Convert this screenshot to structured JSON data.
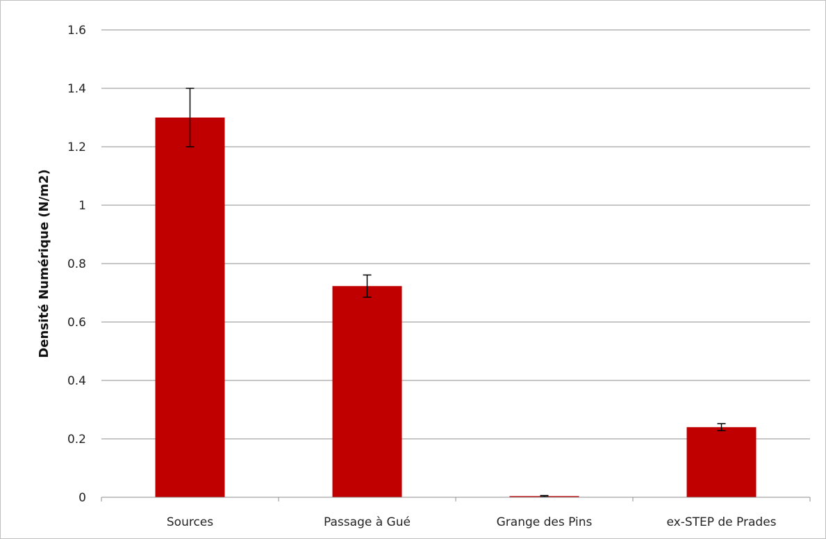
{
  "chart_data": {
    "type": "bar",
    "title": "",
    "xlabel": "",
    "ylabel": "Densité Numérique (N/m2)",
    "categories": [
      "Sources",
      "Passage à Gué",
      "Grange des Pins",
      "ex-STEP de Prades"
    ],
    "values": [
      1.3,
      0.723,
      0.004,
      0.24
    ],
    "errors": [
      0.1,
      0.038,
      0.002,
      0.012
    ],
    "ylim": [
      0,
      1.6
    ],
    "yticks": [
      0,
      0.2,
      0.4,
      0.6,
      0.8,
      1,
      1.2,
      1.4,
      1.6
    ],
    "ytick_labels": [
      "0",
      "0.2",
      "0.4",
      "0.6",
      "0.8",
      "1",
      "1.2",
      "1.4",
      "1.6"
    ],
    "grid": true,
    "legend": "none",
    "colors": {
      "bar": "#c00000",
      "grid": "#8c8c8c",
      "axis": "#8c8c8c",
      "error": "#000000"
    }
  }
}
